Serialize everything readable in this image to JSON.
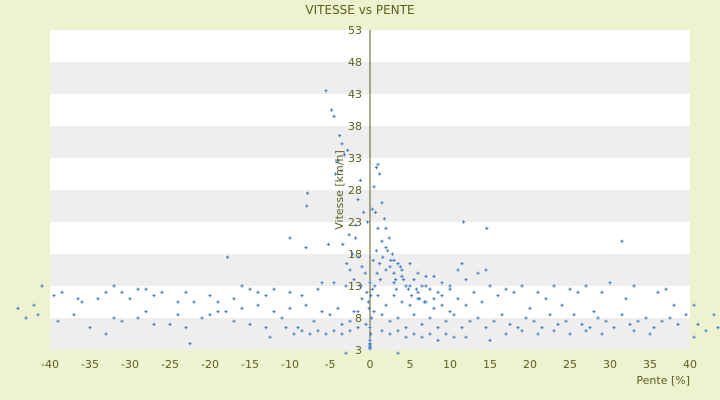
{
  "chart_data": {
    "type": "scatter",
    "title": "VITESSE vs PENTE",
    "xlabel": "Pente [%]",
    "ylabel": "Vitesse [km/h]",
    "xlim": [
      -40,
      40
    ],
    "ylim": [
      3,
      53
    ],
    "x_ticks": [
      "-40",
      "-35",
      "-30",
      "-25",
      "-20",
      "-15",
      "-10",
      "-5",
      "0",
      "5",
      "10",
      "15",
      "20",
      "25",
      "30",
      "35",
      "40"
    ],
    "y_ticks": [
      "3",
      "8",
      "13",
      "18",
      "23",
      "28",
      "33",
      "38",
      "43",
      "48",
      "53"
    ],
    "grid": "horizontal alternating bands",
    "legend": "none",
    "colors": {
      "background": "#eef3cf",
      "band_light": "#ffffff",
      "band_dark": "#eeeeee",
      "marker": "#3b7cc3",
      "text": "#5c5e1e",
      "axis": "#5c5e1e"
    },
    "series": [
      {
        "marker": "+",
        "points": [
          [
            -5.5,
            43.5
          ],
          [
            -4.8,
            40.5
          ],
          [
            -4.5,
            39.5
          ],
          [
            -3.8,
            36.5
          ],
          [
            -3.5,
            35.2
          ],
          [
            -3.2,
            33.5
          ],
          [
            -2.8,
            34.2
          ],
          [
            -4.0,
            32.5
          ],
          [
            -4.3,
            30.5
          ],
          [
            -3.6,
            31.0
          ],
          [
            -7.8,
            27.5
          ],
          [
            -7.9,
            25.5
          ],
          [
            -10.0,
            20.5
          ],
          [
            -8.0,
            19.0
          ],
          [
            -5.2,
            19.5
          ],
          [
            -17.8,
            17.5
          ],
          [
            -6.0,
            13.5
          ],
          [
            -2.5,
            15.5
          ],
          [
            -1.8,
            20.5
          ],
          [
            -1.5,
            26.5
          ],
          [
            -1.2,
            29.5
          ],
          [
            -0.8,
            24.5
          ],
          [
            -0.3,
            23.0
          ],
          [
            0.8,
            31.5
          ],
          [
            1.0,
            32.0
          ],
          [
            1.2,
            30.5
          ],
          [
            0.5,
            28.5
          ],
          [
            0.3,
            25.0
          ],
          [
            0.7,
            24.5
          ],
          [
            1.5,
            26.0
          ],
          [
            1.0,
            22.0
          ],
          [
            1.8,
            23.5
          ],
          [
            2.0,
            22.0
          ],
          [
            2.4,
            20.5
          ],
          [
            1.5,
            20.0
          ],
          [
            3.0,
            17.0
          ],
          [
            3.5,
            16.5
          ],
          [
            4.0,
            15.5
          ],
          [
            5.0,
            16.5
          ],
          [
            6.0,
            15.0
          ],
          [
            7.0,
            14.5
          ],
          [
            8.0,
            14.5
          ],
          [
            9.0,
            13.5
          ],
          [
            10.0,
            13.0
          ],
          [
            11.0,
            15.5
          ],
          [
            11.5,
            16.5
          ],
          [
            12.0,
            14.0
          ],
          [
            13.5,
            15.0
          ],
          [
            14.5,
            15.5
          ],
          [
            11.7,
            23.0
          ],
          [
            14.6,
            22.0
          ],
          [
            31.5,
            20.0
          ],
          [
            2.0,
            19.0
          ],
          [
            2.8,
            18.0
          ],
          [
            3.2,
            14.0
          ],
          [
            4.5,
            13.0
          ],
          [
            5.5,
            14.0
          ],
          [
            6.5,
            13.0
          ],
          [
            7.5,
            12.5
          ],
          [
            8.5,
            12.0
          ],
          [
            -2.0,
            14.0
          ],
          [
            -3.0,
            13.0
          ],
          [
            -4.5,
            13.5
          ],
          [
            -6.5,
            12.5
          ],
          [
            -8.5,
            11.5
          ],
          [
            -10.0,
            12.0
          ],
          [
            -12.0,
            12.5
          ],
          [
            -14.0,
            12.0
          ],
          [
            -17.0,
            11.0
          ],
          [
            -19.0,
            10.5
          ],
          [
            -22.0,
            10.5
          ],
          [
            -24.0,
            10.5
          ],
          [
            -26.0,
            12.0
          ],
          [
            -28.0,
            12.5
          ],
          [
            -30.0,
            11.0
          ],
          [
            -32.0,
            13.0
          ],
          [
            -34.0,
            11.0
          ],
          [
            -36.5,
            11.0
          ],
          [
            -38.5,
            12.0
          ],
          [
            -39.5,
            11.5
          ],
          [
            -41.0,
            13.0
          ],
          [
            -42.0,
            10.0
          ],
          [
            -44.0,
            9.5
          ],
          [
            -43.0,
            8.0
          ],
          [
            -41.5,
            8.5
          ],
          [
            -39.0,
            7.5
          ],
          [
            -37.0,
            8.5
          ],
          [
            -35.0,
            6.5
          ],
          [
            -33.0,
            5.5
          ],
          [
            -31.0,
            7.5
          ],
          [
            -29.0,
            8.0
          ],
          [
            -27.0,
            7.0
          ],
          [
            -25.0,
            7.0
          ],
          [
            -23.0,
            6.5
          ],
          [
            -22.5,
            4.0
          ],
          [
            -21.0,
            8.0
          ],
          [
            -19.0,
            9.0
          ],
          [
            -17.0,
            7.5
          ],
          [
            -15.0,
            7.0
          ],
          [
            -13.0,
            6.5
          ],
          [
            -12.5,
            5.0
          ],
          [
            -11.0,
            8.0
          ],
          [
            -9.0,
            6.5
          ],
          [
            -7.0,
            7.5
          ],
          [
            -5.0,
            8.5
          ],
          [
            -3.5,
            7.0
          ],
          [
            -2.5,
            6.0
          ],
          [
            -1.5,
            9.0
          ],
          [
            -0.5,
            7.0
          ],
          [
            0.5,
            9.0
          ],
          [
            1.5,
            8.5
          ],
          [
            2.5,
            7.5
          ],
          [
            3.5,
            8.0
          ],
          [
            4.5,
            6.5
          ],
          [
            5.5,
            8.5
          ],
          [
            6.5,
            7.0
          ],
          [
            7.5,
            8.0
          ],
          [
            8.5,
            6.5
          ],
          [
            9.5,
            7.5
          ],
          [
            10.5,
            8.5
          ],
          [
            11.5,
            6.5
          ],
          [
            12.0,
            5.0
          ],
          [
            12.5,
            7.5
          ],
          [
            13.5,
            8.0
          ],
          [
            14.5,
            6.5
          ],
          [
            15.5,
            7.5
          ],
          [
            16.5,
            8.5
          ],
          [
            17.5,
            7.0
          ],
          [
            18.5,
            6.5
          ],
          [
            19.5,
            8.0
          ],
          [
            20.5,
            7.5
          ],
          [
            21.5,
            6.5
          ],
          [
            22.5,
            8.5
          ],
          [
            23.5,
            7.0
          ],
          [
            24.5,
            7.5
          ],
          [
            25.5,
            8.5
          ],
          [
            26.5,
            7.0
          ],
          [
            27.5,
            6.5
          ],
          [
            28.5,
            8.0
          ],
          [
            29.5,
            7.5
          ],
          [
            30.5,
            6.5
          ],
          [
            31.5,
            8.5
          ],
          [
            32.5,
            7.0
          ],
          [
            33.5,
            7.5
          ],
          [
            34.5,
            8.0
          ],
          [
            35.5,
            6.5
          ],
          [
            36.5,
            7.5
          ],
          [
            37.5,
            8.0
          ],
          [
            38.5,
            7.0
          ],
          [
            39.5,
            8.5
          ],
          [
            40.5,
            10.0
          ],
          [
            41.0,
            7.0
          ],
          [
            42.0,
            6.0
          ],
          [
            43.0,
            8.5
          ],
          [
            44.0,
            7.5
          ],
          [
            43.5,
            6.5
          ],
          [
            40.5,
            5.0
          ],
          [
            20.0,
            9.5
          ],
          [
            24.0,
            10.0
          ],
          [
            28.0,
            9.0
          ],
          [
            32.0,
            11.0
          ],
          [
            36.0,
            12.0
          ],
          [
            38.0,
            10.0
          ],
          [
            30.0,
            13.5
          ],
          [
            26.0,
            12.0
          ],
          [
            22.0,
            11.0
          ],
          [
            18.0,
            12.0
          ],
          [
            16.0,
            11.5
          ],
          [
            14.0,
            10.5
          ],
          [
            12.0,
            10.0
          ],
          [
            -0.2,
            10.5
          ],
          [
            0.1,
            11.5
          ],
          [
            0.3,
            12.5
          ],
          [
            0.0,
            13.5
          ],
          [
            -0.1,
            9.5
          ],
          [
            0.2,
            8.0
          ],
          [
            0.0,
            6.5
          ],
          [
            0.1,
            5.5
          ],
          [
            0.0,
            4.5
          ],
          [
            0.0,
            4.0
          ],
          [
            0.0,
            3.8
          ],
          [
            0.0,
            3.6
          ],
          [
            0.0,
            3.4
          ],
          [
            0.0,
            3.2
          ],
          [
            -3.0,
            2.5
          ],
          [
            3.5,
            2.5
          ],
          [
            -2.0,
            9.0
          ],
          [
            2.0,
            10.0
          ],
          [
            1.0,
            11.5
          ],
          [
            -1.0,
            11.0
          ],
          [
            3.0,
            11.5
          ],
          [
            4.0,
            10.5
          ],
          [
            5.0,
            10.0
          ],
          [
            6.0,
            11.0
          ],
          [
            7.0,
            10.5
          ],
          [
            8.0,
            9.5
          ],
          [
            9.0,
            10.0
          ],
          [
            10.0,
            9.0
          ],
          [
            -4.0,
            9.5
          ],
          [
            -6.0,
            9.0
          ],
          [
            -8.0,
            10.0
          ],
          [
            -10.0,
            9.5
          ],
          [
            -12.0,
            9.0
          ],
          [
            -14.0,
            10.0
          ],
          [
            -16.0,
            9.5
          ],
          [
            -18.0,
            9.0
          ],
          [
            -20.0,
            8.5
          ],
          [
            -24.0,
            8.5
          ],
          [
            -28.0,
            9.0
          ],
          [
            -32.0,
            8.0
          ],
          [
            1.5,
            6.0
          ],
          [
            2.5,
            5.5
          ],
          [
            3.5,
            6.0
          ],
          [
            4.5,
            5.0
          ],
          [
            5.5,
            5.5
          ],
          [
            6.5,
            5.0
          ],
          [
            7.5,
            5.5
          ],
          [
            8.5,
            4.5
          ],
          [
            9.5,
            5.5
          ],
          [
            10.5,
            5.0
          ],
          [
            -1.5,
            6.5
          ],
          [
            -2.5,
            7.5
          ],
          [
            -3.5,
            5.5
          ],
          [
            -4.5,
            6.0
          ],
          [
            -5.5,
            5.5
          ],
          [
            -6.5,
            6.0
          ],
          [
            -7.5,
            5.5
          ],
          [
            -8.5,
            6.0
          ],
          [
            -9.5,
            5.5
          ],
          [
            -10.5,
            6.5
          ],
          [
            15.0,
            4.5
          ],
          [
            17.0,
            5.5
          ],
          [
            19.0,
            6.0
          ],
          [
            21.0,
            5.5
          ],
          [
            23.0,
            6.0
          ],
          [
            25.0,
            5.5
          ],
          [
            27.0,
            6.0
          ],
          [
            29.0,
            5.5
          ],
          [
            33.0,
            6.0
          ],
          [
            35.0,
            5.5
          ],
          [
            3.0,
            13.5
          ],
          [
            4.0,
            14.5
          ],
          [
            5.0,
            13.0
          ],
          [
            6.0,
            12.0
          ],
          [
            7.0,
            13.0
          ],
          [
            8.0,
            11.0
          ],
          [
            9.0,
            11.5
          ],
          [
            10.0,
            12.5
          ],
          [
            11.0,
            11.0
          ],
          [
            13.0,
            12.0
          ],
          [
            15.0,
            13.0
          ],
          [
            17.0,
            12.5
          ],
          [
            19.0,
            13.0
          ],
          [
            21.0,
            12.0
          ],
          [
            23.0,
            13.0
          ],
          [
            25.0,
            12.5
          ],
          [
            27.0,
            13.0
          ],
          [
            29.0,
            12.0
          ],
          [
            33.0,
            13.0
          ],
          [
            37.0,
            12.5
          ],
          [
            -13.0,
            11.5
          ],
          [
            -15.0,
            12.5
          ],
          [
            -16.0,
            13.0
          ],
          [
            -20.0,
            11.5
          ],
          [
            -23.0,
            12.0
          ],
          [
            -27.0,
            11.5
          ],
          [
            -29.0,
            12.5
          ],
          [
            -31.0,
            12.0
          ],
          [
            -33.0,
            12.0
          ],
          [
            -36.0,
            10.5
          ],
          [
            2.0,
            15.5
          ],
          [
            2.5,
            16.0
          ],
          [
            3.0,
            15.0
          ],
          [
            3.8,
            16.0
          ],
          [
            4.2,
            14.0
          ],
          [
            4.8,
            12.5
          ],
          [
            5.2,
            11.5
          ],
          [
            5.8,
            12.5
          ],
          [
            6.2,
            11.0
          ],
          [
            6.8,
            10.5
          ],
          [
            1.2,
            16.5
          ],
          [
            1.6,
            17.5
          ],
          [
            2.2,
            18.5
          ],
          [
            2.6,
            17.0
          ],
          [
            3.3,
            12.5
          ],
          [
            0.6,
            13.0
          ],
          [
            0.9,
            15.0
          ],
          [
            1.3,
            14.0
          ],
          [
            0.4,
            17.0
          ],
          [
            0.8,
            18.5
          ],
          [
            -1.0,
            16.0
          ],
          [
            -1.4,
            17.5
          ],
          [
            -2.2,
            18.0
          ],
          [
            -2.6,
            21.0
          ],
          [
            -1.8,
            22.5
          ],
          [
            -0.6,
            15.0
          ],
          [
            -1.1,
            13.0
          ],
          [
            -0.4,
            12.0
          ],
          [
            -2.9,
            16.5
          ],
          [
            -3.4,
            19.5
          ]
        ]
      }
    ]
  }
}
